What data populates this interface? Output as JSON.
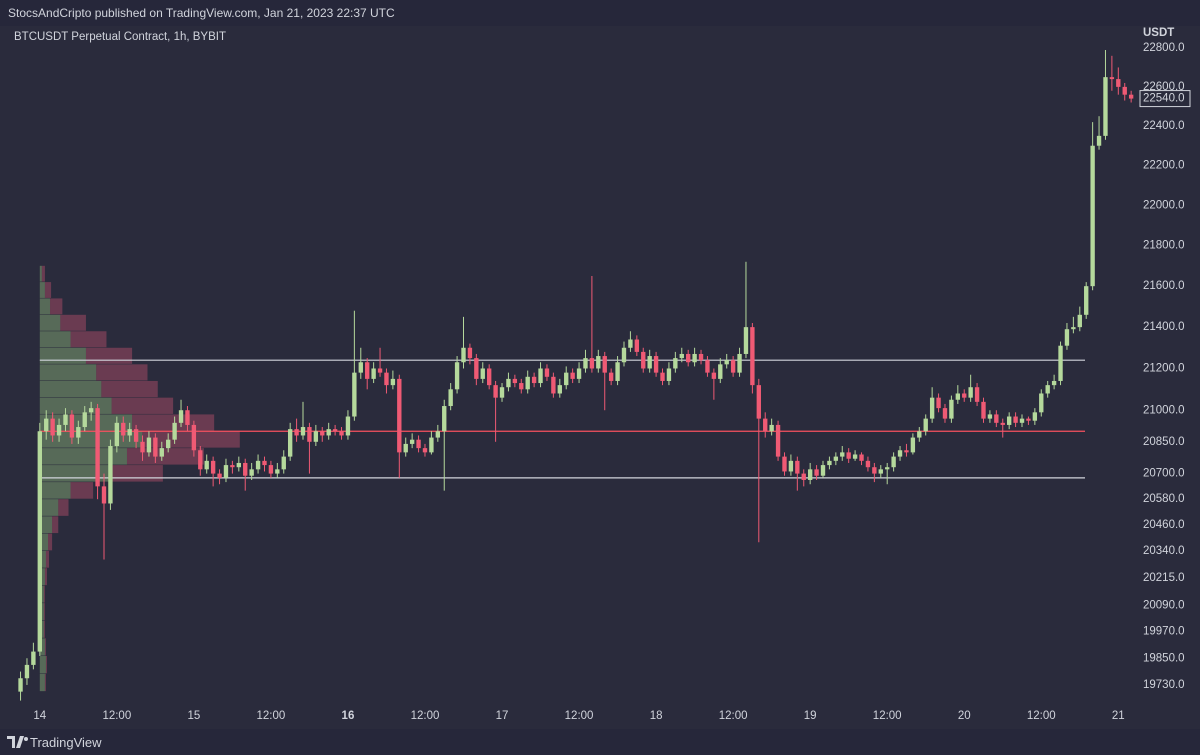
{
  "header": {
    "text": "StocsAndCripto published on TradingView.com, Jan 21, 2023 22:37 UTC"
  },
  "footer": {
    "brand": "TradingView"
  },
  "chart_data": {
    "type": "candlestick",
    "title": "BTCUSDT Perpetual Contract, 1h, BYBIT",
    "ylabel": "USDT",
    "log_scale": true,
    "grid": false,
    "up_color": "#b5d99c",
    "down_color": "#ef5a74",
    "background": "#2a2b3c",
    "ylim": [
      19538,
      22925
    ],
    "yticks": [
      {
        "value": 22800,
        "label": "22800.0"
      },
      {
        "value": 22600,
        "label": "22600.0"
      },
      {
        "value": 22400,
        "label": "22400.0"
      },
      {
        "value": 22200,
        "label": "22200.0"
      },
      {
        "value": 22000,
        "label": "22000.0"
      },
      {
        "value": 21800,
        "label": "21800.0"
      },
      {
        "value": 21600,
        "label": "21600.0"
      },
      {
        "value": 21400,
        "label": "21400.0"
      },
      {
        "value": 21200,
        "label": "21200.0"
      },
      {
        "value": 21000,
        "label": "21000.0"
      },
      {
        "value": 20850,
        "label": "20850.0"
      },
      {
        "value": 20700,
        "label": "20700.0"
      },
      {
        "value": 20580,
        "label": "20580.0"
      },
      {
        "value": 20460,
        "label": "20460.0"
      },
      {
        "value": 20340,
        "label": "20340.0"
      },
      {
        "value": 20215,
        "label": "20215.0"
      },
      {
        "value": 20090,
        "label": "20090.0"
      },
      {
        "value": 19970,
        "label": "19970.0"
      },
      {
        "value": 19850,
        "label": "19850.0"
      },
      {
        "value": 19730,
        "label": "19730.0"
      }
    ],
    "last_price": {
      "value": 22540,
      "label": "22540.0"
    },
    "xlim": [
      -6.2,
      170.6
    ],
    "xticks": [
      {
        "value": 0,
        "label": "14"
      },
      {
        "value": 12,
        "label": "12:00"
      },
      {
        "value": 24,
        "label": "15"
      },
      {
        "value": 36,
        "label": "12:00"
      },
      {
        "value": 48,
        "label": "16",
        "bold": true
      },
      {
        "value": 60,
        "label": "12:00"
      },
      {
        "value": 72,
        "label": "17"
      },
      {
        "value": 84,
        "label": "12:00"
      },
      {
        "value": 96,
        "label": "18"
      },
      {
        "value": 108,
        "label": "12:00"
      },
      {
        "value": 120,
        "label": "19"
      },
      {
        "value": 132,
        "label": "12:00"
      },
      {
        "value": 144,
        "label": "20"
      },
      {
        "value": 156,
        "label": "12:00"
      },
      {
        "value": 168,
        "label": "21"
      }
    ],
    "levels": [
      {
        "value": 21240,
        "color": "#d1d4dc"
      },
      {
        "value": 20900,
        "color": "#f7525f"
      },
      {
        "value": 20680,
        "color": "#d1d4dc"
      }
    ],
    "volume_profile": {
      "up_color": "#8fb87a",
      "down_color": "#b8506a",
      "bins": [
        19700,
        19780,
        19860,
        19940,
        20020,
        20100,
        20180,
        20260,
        20340,
        20420,
        20500,
        20580,
        20660,
        20740,
        20820,
        20900,
        20980,
        21060,
        21140,
        21220,
        21300,
        21380,
        21460,
        21540,
        21620,
        21700
      ],
      "up": [
        5,
        6,
        5,
        4,
        4,
        4,
        5,
        6,
        8,
        12,
        18,
        30,
        70,
        85,
        100,
        90,
        70,
        60,
        55,
        45,
        30,
        20,
        10,
        5,
        2
      ],
      "down": [
        1,
        1,
        1,
        1,
        1,
        1,
        2,
        3,
        4,
        6,
        10,
        22,
        50,
        75,
        95,
        80,
        60,
        55,
        50,
        45,
        35,
        25,
        12,
        6,
        3
      ]
    },
    "x": [
      -3,
      -2,
      -1,
      0,
      1,
      2,
      3,
      4,
      5,
      6,
      7,
      8,
      9,
      10,
      11,
      12,
      13,
      14,
      15,
      16,
      17,
      18,
      19,
      20,
      21,
      22,
      23,
      24,
      25,
      26,
      27,
      28,
      29,
      30,
      31,
      32,
      33,
      34,
      35,
      36,
      37,
      38,
      39,
      40,
      41,
      42,
      43,
      44,
      45,
      46,
      47,
      48,
      49,
      50,
      51,
      52,
      53,
      54,
      55,
      56,
      57,
      58,
      59,
      60,
      61,
      62,
      63,
      64,
      65,
      66,
      67,
      68,
      69,
      70,
      71,
      72,
      73,
      74,
      75,
      76,
      77,
      78,
      79,
      80,
      81,
      82,
      83,
      84,
      85,
      86,
      87,
      88,
      89,
      90,
      91,
      92,
      93,
      94,
      95,
      96,
      97,
      98,
      99,
      100,
      101,
      102,
      103,
      104,
      105,
      106,
      107,
      108,
      109,
      110,
      111,
      112,
      113,
      114,
      115,
      116,
      117,
      118,
      119,
      120,
      121,
      122,
      123,
      124,
      125,
      126,
      127,
      128,
      129,
      130,
      131,
      132,
      133,
      134,
      135,
      136,
      137,
      138,
      139,
      140,
      141,
      142,
      143,
      144,
      145,
      146,
      147,
      148,
      149,
      150,
      151,
      152,
      153,
      154,
      155,
      156,
      157,
      158,
      159,
      160,
      161,
      162,
      163,
      164,
      165,
      166,
      167,
      168,
      169,
      170
    ],
    "ohlc": [
      [
        19700,
        19790,
        19660,
        19760
      ],
      [
        19760,
        19850,
        19730,
        19820
      ],
      [
        19820,
        19920,
        19800,
        19880
      ],
      [
        19880,
        20940,
        19860,
        20900
      ],
      [
        20900,
        21000,
        20860,
        20960
      ],
      [
        20960,
        20990,
        20850,
        20880
      ],
      [
        20880,
        20960,
        20850,
        20930
      ],
      [
        20930,
        21010,
        20900,
        20980
      ],
      [
        20980,
        21000,
        20840,
        20870
      ],
      [
        20870,
        20950,
        20840,
        20920
      ],
      [
        20920,
        21020,
        20900,
        20990
      ],
      [
        20990,
        21040,
        20950,
        21010
      ],
      [
        21010,
        21030,
        20580,
        20640
      ],
      [
        20640,
        20700,
        20300,
        20560
      ],
      [
        20560,
        20860,
        20530,
        20830
      ],
      [
        20830,
        20970,
        20800,
        20940
      ],
      [
        20940,
        20970,
        20850,
        20880
      ],
      [
        20880,
        20940,
        20850,
        20910
      ],
      [
        20910,
        20930,
        20820,
        20850
      ],
      [
        20850,
        20880,
        20760,
        20800
      ],
      [
        20800,
        20900,
        20780,
        20870
      ],
      [
        20870,
        20890,
        20750,
        20780
      ],
      [
        20780,
        20850,
        20760,
        20820
      ],
      [
        20820,
        20890,
        20800,
        20860
      ],
      [
        20860,
        20970,
        20840,
        20940
      ],
      [
        20940,
        21050,
        20920,
        21000
      ],
      [
        21000,
        21020,
        20900,
        20930
      ],
      [
        20930,
        20950,
        20780,
        20810
      ],
      [
        20810,
        20830,
        20690,
        20720
      ],
      [
        20720,
        20790,
        20700,
        20760
      ],
      [
        20760,
        20780,
        20640,
        20700
      ],
      [
        20700,
        20720,
        20650,
        20680
      ],
      [
        20680,
        20770,
        20660,
        20740
      ],
      [
        20740,
        20760,
        20700,
        20730
      ],
      [
        20730,
        20780,
        20710,
        20750
      ],
      [
        20750,
        20770,
        20620,
        20690
      ],
      [
        20690,
        20750,
        20670,
        20720
      ],
      [
        20720,
        20790,
        20700,
        20760
      ],
      [
        20760,
        20780,
        20710,
        20740
      ],
      [
        20740,
        20760,
        20680,
        20700
      ],
      [
        20700,
        20750,
        20680,
        20720
      ],
      [
        20720,
        20810,
        20700,
        20780
      ],
      [
        20780,
        20940,
        20760,
        20910
      ],
      [
        20910,
        20960,
        20850,
        20880
      ],
      [
        20880,
        21040,
        20860,
        20920
      ],
      [
        20920,
        20940,
        20700,
        20850
      ],
      [
        20850,
        20930,
        20830,
        20900
      ],
      [
        20900,
        20920,
        20850,
        20880
      ],
      [
        20880,
        20940,
        20860,
        20910
      ],
      [
        20910,
        20930,
        20880,
        20900
      ],
      [
        20900,
        20920,
        20860,
        20880
      ],
      [
        20880,
        21000,
        20860,
        20970
      ],
      [
        20970,
        21480,
        20950,
        21180
      ],
      [
        21180,
        21300,
        21150,
        21230
      ],
      [
        21230,
        21250,
        21100,
        21150
      ],
      [
        21150,
        21230,
        21130,
        21200
      ],
      [
        21200,
        21300,
        21160,
        21180
      ],
      [
        21180,
        21200,
        21080,
        21120
      ],
      [
        21120,
        21190,
        21100,
        21150
      ],
      [
        21150,
        21170,
        20680,
        20800
      ],
      [
        20800,
        20870,
        20780,
        20840
      ],
      [
        20840,
        20890,
        20820,
        20860
      ],
      [
        20860,
        20880,
        20800,
        20820
      ],
      [
        20820,
        20840,
        20780,
        20800
      ],
      [
        20800,
        20900,
        20790,
        20870
      ],
      [
        20870,
        20930,
        20850,
        20900
      ],
      [
        20900,
        21050,
        20620,
        21020
      ],
      [
        21020,
        21130,
        21000,
        21100
      ],
      [
        21100,
        21260,
        21080,
        21230
      ],
      [
        21230,
        21450,
        21200,
        21300
      ],
      [
        21300,
        21320,
        21220,
        21250
      ],
      [
        21250,
        21270,
        21120,
        21150
      ],
      [
        21150,
        21230,
        21130,
        21200
      ],
      [
        21200,
        21220,
        21100,
        21120
      ],
      [
        21120,
        21140,
        20850,
        21060
      ],
      [
        21060,
        21130,
        21040,
        21110
      ],
      [
        21110,
        21180,
        21090,
        21150
      ],
      [
        21150,
        21170,
        21110,
        21130
      ],
      [
        21130,
        21150,
        21080,
        21100
      ],
      [
        21100,
        21190,
        21080,
        21160
      ],
      [
        21160,
        21180,
        21110,
        21130
      ],
      [
        21130,
        21230,
        21110,
        21200
      ],
      [
        21200,
        21220,
        21140,
        21160
      ],
      [
        21160,
        21180,
        21060,
        21080
      ],
      [
        21080,
        21150,
        21060,
        21120
      ],
      [
        21120,
        21210,
        21100,
        21180
      ],
      [
        21180,
        21200,
        21130,
        21150
      ],
      [
        21150,
        21230,
        21130,
        21200
      ],
      [
        21200,
        21290,
        21180,
        21250
      ],
      [
        21250,
        21650,
        21180,
        21200
      ],
      [
        21200,
        21290,
        21180,
        21260
      ],
      [
        21260,
        21280,
        21000,
        21180
      ],
      [
        21180,
        21200,
        21120,
        21140
      ],
      [
        21140,
        21260,
        21120,
        21230
      ],
      [
        21230,
        21330,
        21210,
        21300
      ],
      [
        21300,
        21380,
        21280,
        21340
      ],
      [
        21340,
        21360,
        21260,
        21280
      ],
      [
        21280,
        21300,
        21180,
        21200
      ],
      [
        21200,
        21290,
        21180,
        21260
      ],
      [
        21260,
        21280,
        21160,
        21180
      ],
      [
        21180,
        21200,
        21120,
        21140
      ],
      [
        21140,
        21230,
        21120,
        21200
      ],
      [
        21200,
        21280,
        21180,
        21250
      ],
      [
        21250,
        21300,
        21230,
        21270
      ],
      [
        21270,
        21290,
        21210,
        21230
      ],
      [
        21230,
        21300,
        21210,
        21270
      ],
      [
        21270,
        21290,
        21220,
        21240
      ],
      [
        21240,
        21260,
        21160,
        21180
      ],
      [
        21180,
        21200,
        21050,
        21150
      ],
      [
        21150,
        21250,
        21130,
        21220
      ],
      [
        21220,
        21270,
        21200,
        21240
      ],
      [
        21240,
        21260,
        21160,
        21180
      ],
      [
        21180,
        21300,
        21160,
        21270
      ],
      [
        21270,
        21720,
        21250,
        21400
      ],
      [
        21400,
        21420,
        21080,
        21120
      ],
      [
        21120,
        21150,
        20380,
        20960
      ],
      [
        20960,
        20990,
        20870,
        20900
      ],
      [
        20900,
        20960,
        20880,
        20930
      ],
      [
        20930,
        20950,
        20760,
        20780
      ],
      [
        20780,
        20800,
        20690,
        20710
      ],
      [
        20710,
        20790,
        20690,
        20760
      ],
      [
        20760,
        20780,
        20620,
        20700
      ],
      [
        20700,
        20720,
        20640,
        20670
      ],
      [
        20670,
        20750,
        20650,
        20720
      ],
      [
        20720,
        20740,
        20670,
        20690
      ],
      [
        20690,
        20760,
        20680,
        20740
      ],
      [
        20740,
        20780,
        20720,
        20760
      ],
      [
        20760,
        20800,
        20740,
        20780
      ],
      [
        20780,
        20830,
        20760,
        20800
      ],
      [
        20800,
        20820,
        20750,
        20770
      ],
      [
        20770,
        20810,
        20760,
        20790
      ],
      [
        20790,
        20800,
        20740,
        20760
      ],
      [
        20760,
        20780,
        20710,
        20730
      ],
      [
        20730,
        20750,
        20660,
        20700
      ],
      [
        20700,
        20740,
        20680,
        20720
      ],
      [
        20720,
        20750,
        20650,
        20730
      ],
      [
        20730,
        20800,
        20710,
        20780
      ],
      [
        20780,
        20830,
        20760,
        20810
      ],
      [
        20810,
        20840,
        20780,
        20800
      ],
      [
        20800,
        20890,
        20790,
        20870
      ],
      [
        20870,
        20920,
        20850,
        20900
      ],
      [
        20900,
        20980,
        20880,
        20960
      ],
      [
        20960,
        21110,
        20940,
        21060
      ],
      [
        21060,
        21080,
        20990,
        21010
      ],
      [
        21010,
        21030,
        20940,
        20960
      ],
      [
        20960,
        21070,
        20940,
        21050
      ],
      [
        21050,
        21120,
        21030,
        21080
      ],
      [
        21080,
        21100,
        21040,
        21060
      ],
      [
        21060,
        21170,
        21040,
        21110
      ],
      [
        21110,
        21130,
        21020,
        21040
      ],
      [
        21040,
        21060,
        20940,
        20960
      ],
      [
        20960,
        21000,
        20940,
        20980
      ],
      [
        20980,
        21000,
        20920,
        20940
      ],
      [
        20940,
        20960,
        20870,
        20930
      ],
      [
        20930,
        20990,
        20910,
        20970
      ],
      [
        20970,
        20990,
        20920,
        20940
      ],
      [
        20940,
        20980,
        20920,
        20960
      ],
      [
        20960,
        20970,
        20930,
        20950
      ],
      [
        20950,
        21010,
        20930,
        20990
      ],
      [
        20990,
        21100,
        20970,
        21080
      ],
      [
        21080,
        21140,
        21060,
        21120
      ],
      [
        21120,
        21170,
        21100,
        21140
      ],
      [
        21140,
        21330,
        21120,
        21310
      ],
      [
        21310,
        21420,
        21290,
        21390
      ],
      [
        21390,
        21450,
        21370,
        21400
      ],
      [
        21400,
        21500,
        21380,
        21460
      ],
      [
        21460,
        21620,
        21440,
        21600
      ],
      [
        21600,
        22420,
        21580,
        22300
      ],
      [
        22300,
        22450,
        22280,
        22350
      ],
      [
        22350,
        22790,
        22330,
        22650
      ],
      [
        22650,
        22760,
        22580,
        22640
      ],
      [
        22640,
        22700,
        22560,
        22600
      ],
      [
        22600,
        22620,
        22530,
        22560
      ],
      [
        22560,
        22580,
        22520,
        22540
      ]
    ]
  }
}
